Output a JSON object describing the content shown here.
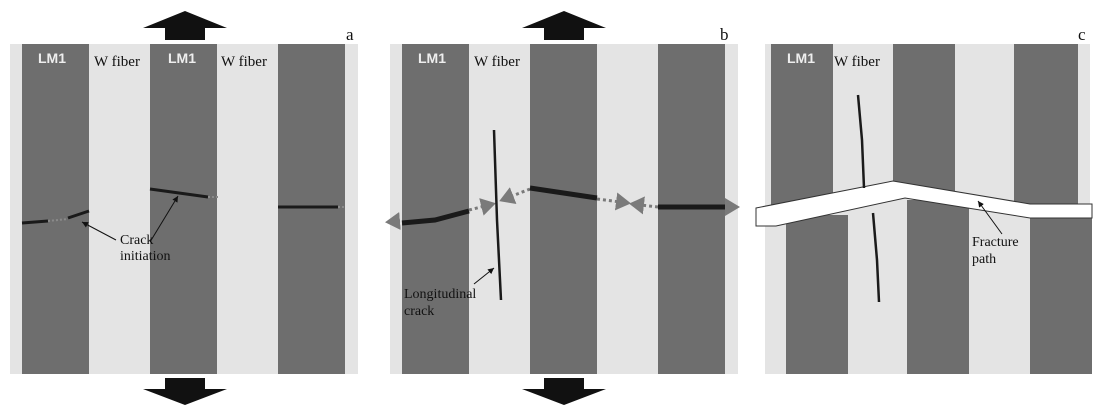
{
  "panels": [
    {
      "id": "a",
      "letter": "a",
      "lm_label": "LM1",
      "fiber_label": "W fiber",
      "annotation": [
        "Crack",
        "initiation"
      ]
    },
    {
      "id": "b",
      "letter": "b",
      "lm_label": "LM1",
      "fiber_label": "W fiber",
      "annotation": [
        "Longitudinal",
        "crack"
      ]
    },
    {
      "id": "c",
      "letter": "c",
      "lm_label": "LM1",
      "fiber_label": "W fiber",
      "annotation": [
        "Fracture",
        "path"
      ]
    }
  ],
  "colors": {
    "fiber_background": "#e4e4e4",
    "matrix_band": "#6e6e6e",
    "crack": "#1a1a1a",
    "crack_propagation": "#7a7a7a",
    "load_arrow": "#111111"
  },
  "icons": {
    "load_arrow": "thick-block-arrow",
    "annotation_pointer": "thin-arrow"
  }
}
